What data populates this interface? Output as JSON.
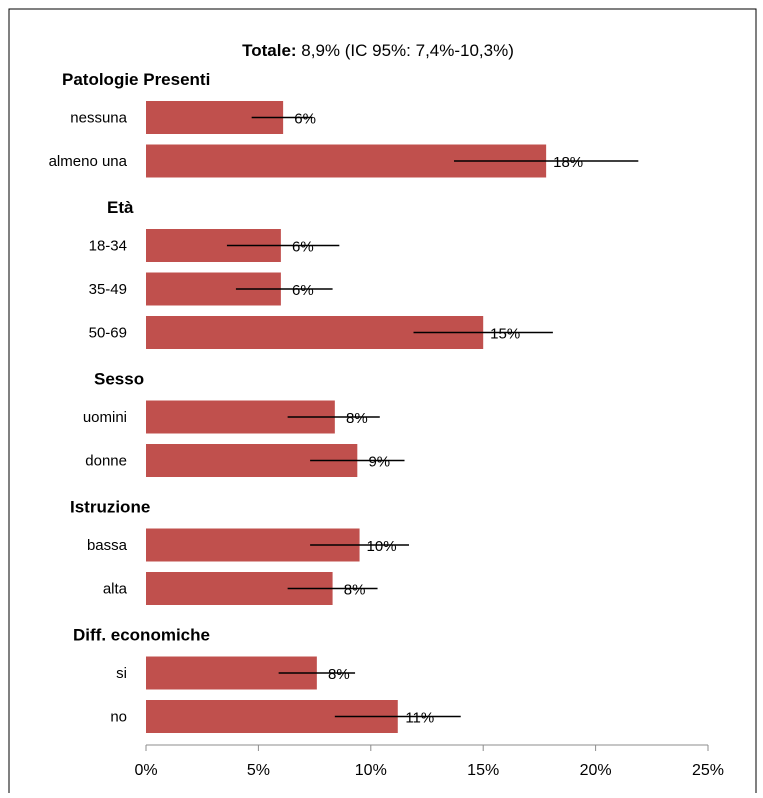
{
  "chart_data": {
    "type": "bar",
    "orientation": "horizontal",
    "title_bold": "Totale:",
    "title_rest": " 8,9% (IC 95%: 7,4%-10,3%)",
    "bar_color": "#c0504d",
    "xlim": [
      0,
      25
    ],
    "xticks": [
      "0%",
      "5%",
      "10%",
      "15%",
      "20%",
      "25%"
    ],
    "xtick_values": [
      0,
      5,
      10,
      15,
      20,
      25
    ],
    "grid": false,
    "groups": [
      {
        "name": "Patologie Presenti",
        "items": [
          {
            "label": "nessuna",
            "value": 6.1,
            "ci": [
              4.7,
              7.4
            ],
            "value_label": "6%"
          },
          {
            "label": "almeno una",
            "value": 17.8,
            "ci": [
              13.7,
              21.9
            ],
            "value_label": "18%"
          }
        ]
      },
      {
        "name": "Età",
        "items": [
          {
            "label": "18-34",
            "value": 6.0,
            "ci": [
              3.6,
              8.6
            ],
            "value_label": "6%"
          },
          {
            "label": "35-49",
            "value": 6.0,
            "ci": [
              4.0,
              8.3
            ],
            "value_label": "6%"
          },
          {
            "label": "50-69",
            "value": 15.0,
            "ci": [
              11.9,
              18.1
            ],
            "value_label": "15%"
          }
        ]
      },
      {
        "name": "Sesso",
        "items": [
          {
            "label": "uomini",
            "value": 8.4,
            "ci": [
              6.3,
              10.4
            ],
            "value_label": "8%"
          },
          {
            "label": "donne",
            "value": 9.4,
            "ci": [
              7.3,
              11.5
            ],
            "value_label": "9%"
          }
        ]
      },
      {
        "name": "Istruzione",
        "items": [
          {
            "label": "bassa",
            "value": 9.5,
            "ci": [
              7.3,
              11.7
            ],
            "value_label": "10%"
          },
          {
            "label": "alta",
            "value": 8.3,
            "ci": [
              6.3,
              10.3
            ],
            "value_label": "8%"
          }
        ]
      },
      {
        "name": "Diff. economiche",
        "items": [
          {
            "label": "si",
            "value": 7.6,
            "ci": [
              5.9,
              9.3
            ],
            "value_label": "8%"
          },
          {
            "label": "no",
            "value": 11.2,
            "ci": [
              8.4,
              14.0
            ],
            "value_label": "11%"
          }
        ]
      }
    ]
  }
}
